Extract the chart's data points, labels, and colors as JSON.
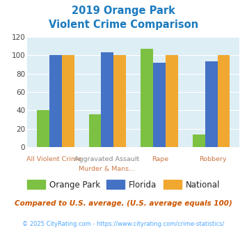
{
  "title_line1": "2019 Orange Park",
  "title_line2": "Violent Crime Comparison",
  "cat_labels_top": [
    "",
    "Aggravated Assault",
    "",
    ""
  ],
  "cat_labels_bot": [
    "All Violent Crime",
    "Murder & Mans...",
    "Rape",
    "Robbery"
  ],
  "orange_park": [
    40,
    36,
    107,
    14
  ],
  "florida": [
    100,
    103,
    92,
    93
  ],
  "national": [
    100,
    100,
    100,
    100
  ],
  "color_op": "#7cc142",
  "color_fl": "#4472c4",
  "color_nat": "#f0a830",
  "ylim": [
    0,
    120
  ],
  "yticks": [
    0,
    20,
    40,
    60,
    80,
    100,
    120
  ],
  "bg_color": "#ddeef5",
  "title_color": "#1a7abf",
  "label_top_color": "#888888",
  "label_bot_color": "#cc7744",
  "footer_text": "Compared to U.S. average. (U.S. average equals 100)",
  "footer_color": "#cc5500",
  "credit_text": "© 2025 CityRating.com - https://www.cityrating.com/crime-statistics/",
  "credit_color": "#4da6ff",
  "legend_labels": [
    "Orange Park",
    "Florida",
    "National"
  ]
}
